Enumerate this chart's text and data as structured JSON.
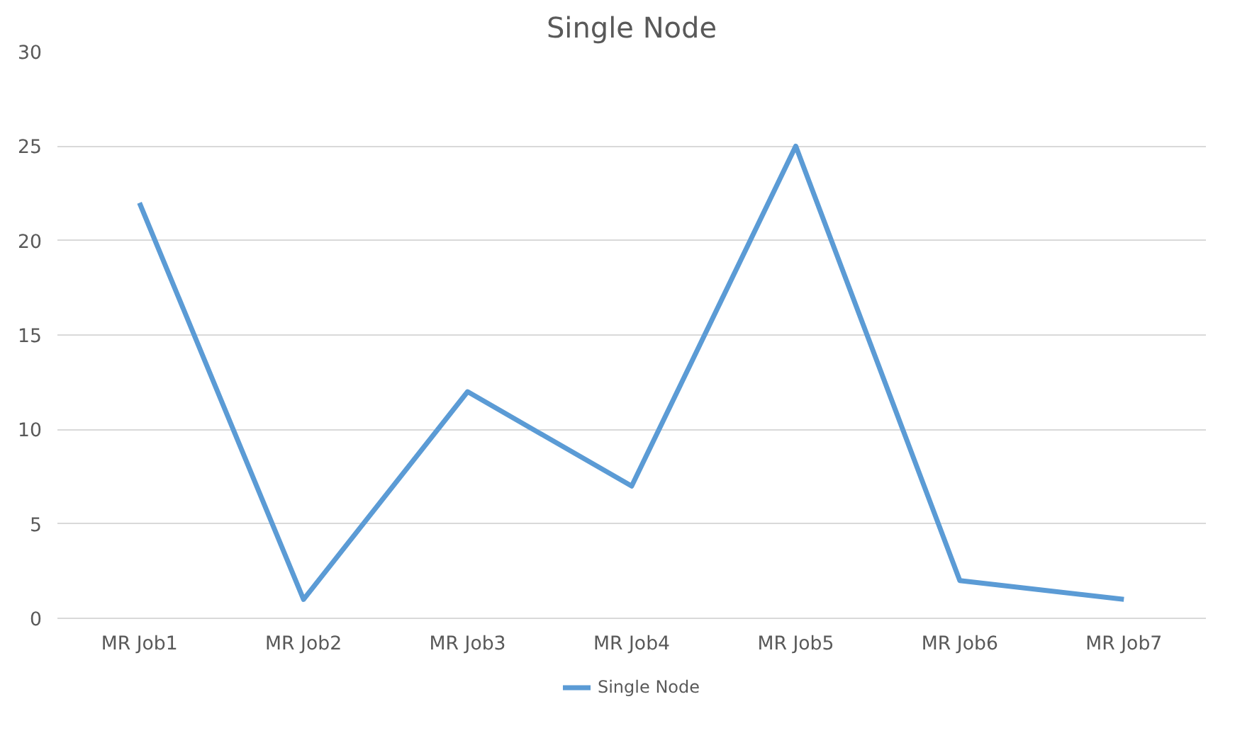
{
  "chart_data": {
    "type": "line",
    "title": "Single Node",
    "categories": [
      "MR Job1",
      "MR Job2",
      "MR Job3",
      "MR Job4",
      "MR Job5",
      "MR Job6",
      "MR Job7"
    ],
    "series": [
      {
        "name": "Single Node",
        "color": "#5b9bd5",
        "values": [
          22,
          1,
          12,
          7,
          25,
          2,
          1
        ]
      }
    ],
    "ylim": [
      0,
      30
    ],
    "yticks": [
      0,
      5,
      10,
      15,
      20,
      25,
      30
    ],
    "grid": "y",
    "legend": "bottom",
    "marker": "none",
    "line_style": "solid"
  }
}
